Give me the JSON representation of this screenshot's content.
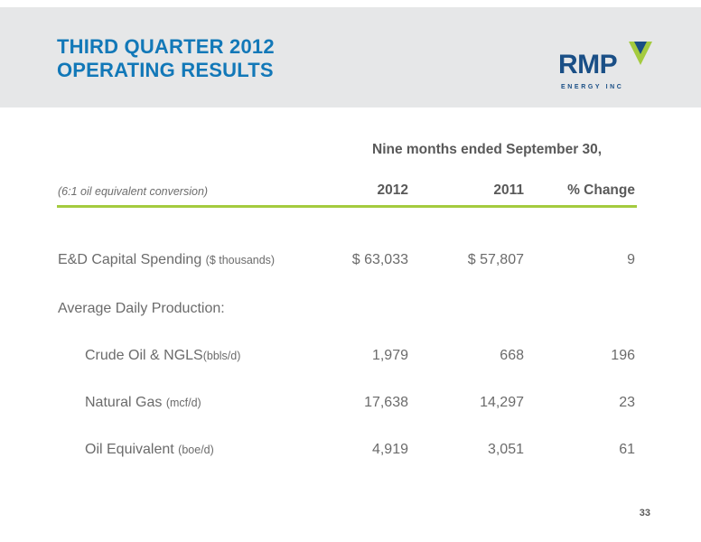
{
  "header": {
    "title_line1": "THIRD QUARTER 2012",
    "title_line2": "OPERATING RESULTS",
    "logo_main": "RMP",
    "logo_sub": "ENERGY INC"
  },
  "table": {
    "period_header": "Nine months ended September 30,",
    "note": "(6:1 oil equivalent conversion)",
    "col_2012": "2012",
    "col_2011": "2011",
    "col_change": "% Change",
    "rows": [
      {
        "label": "E&D Capital Spending ",
        "unit": "($ thousands)",
        "v2012": "$ 63,033",
        "v2011": "$ 57,807",
        "change": "9"
      },
      {
        "label": "Average Daily Production:",
        "unit": "",
        "v2012": "",
        "v2011": "",
        "change": ""
      },
      {
        "label": "Crude Oil & NGLS",
        "unit": "(bbls/d)",
        "v2012": "1,979",
        "v2011": "668",
        "change": "196"
      },
      {
        "label": "Natural Gas ",
        "unit": "(mcf/d)",
        "v2012": "17,638",
        "v2011": "14,297",
        "change": "23"
      },
      {
        "label": "Oil Equivalent ",
        "unit": "(boe/d)",
        "v2012": "4,919",
        "v2011": "3,051",
        "change": "61"
      }
    ]
  },
  "page_number": "33",
  "colors": {
    "title_blue": "#1278b8",
    "logo_navy": "#1a4f86",
    "logo_green": "#a4cb3f",
    "rule_green": "#a4cb3f",
    "header_gray": "#e6e7e8"
  }
}
